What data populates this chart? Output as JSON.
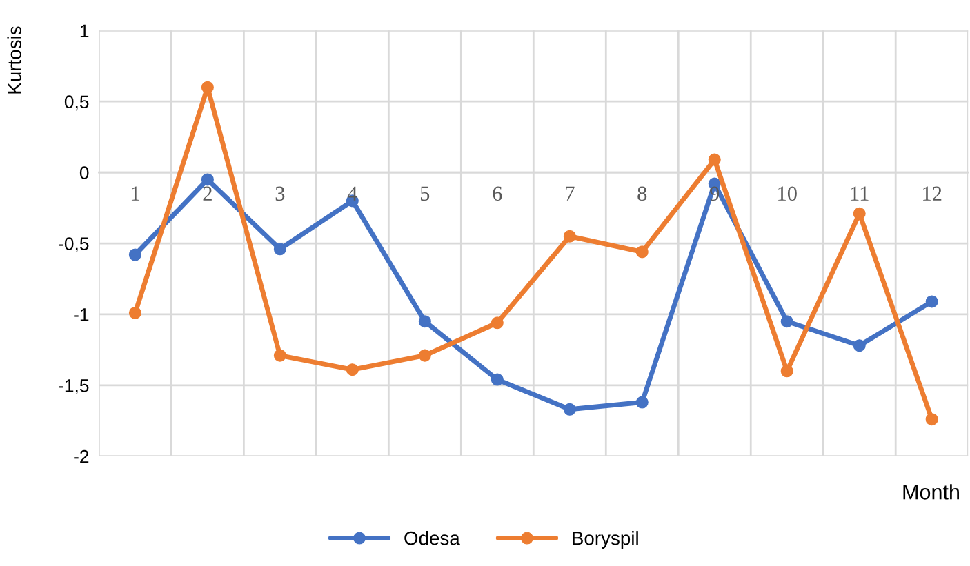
{
  "chart_data": {
    "type": "line",
    "xlabel": "Month",
    "ylabel": "Kurtosis",
    "categories": [
      "1",
      "2",
      "3",
      "4",
      "5",
      "6",
      "7",
      "8",
      "9",
      "10",
      "11",
      "12"
    ],
    "series": [
      {
        "name": "Odesa",
        "color": "#4472c4",
        "values": [
          -0.58,
          -0.05,
          -0.54,
          -0.2,
          -1.05,
          -1.46,
          -1.67,
          -1.62,
          -0.08,
          -1.05,
          -1.22,
          -0.91
        ]
      },
      {
        "name": "Boryspil",
        "color": "#ed7d31",
        "values": [
          -0.99,
          0.6,
          -1.29,
          -1.39,
          -1.29,
          -1.06,
          -0.45,
          -0.56,
          0.09,
          -1.4,
          -0.29,
          -1.74
        ]
      }
    ],
    "ylim": [
      -2,
      1
    ],
    "yticks": [
      -2,
      {
        "value": -1.5,
        "label": "-1,5"
      },
      -1,
      {
        "value": -0.5,
        "label": "-0,5"
      },
      0,
      {
        "value": 0.5,
        "label": "0,5"
      },
      1
    ],
    "grid": true,
    "legend": "bottom",
    "marker": "circle",
    "line_style": "solid"
  }
}
